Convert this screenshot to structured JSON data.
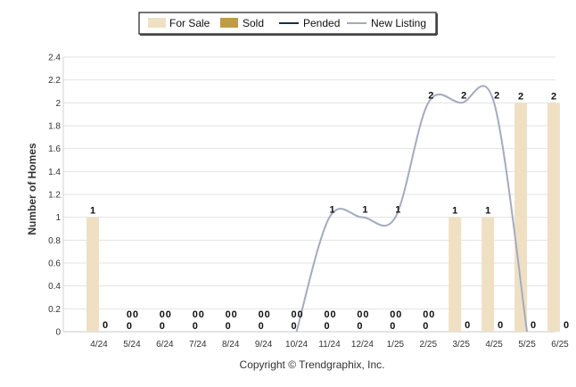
{
  "chart_data": {
    "type": "bar",
    "categories": [
      "4/24",
      "5/24",
      "6/24",
      "7/24",
      "8/24",
      "9/24",
      "10/24",
      "11/24",
      "12/24",
      "1/25",
      "2/25",
      "3/25",
      "4/25",
      "5/25",
      "6/25"
    ],
    "series": [
      {
        "name": "For Sale",
        "kind": "bar",
        "color": "#efe0c4",
        "values": [
          1,
          0,
          0,
          0,
          0,
          0,
          0,
          0,
          0,
          0,
          0,
          1,
          1,
          2,
          2
        ]
      },
      {
        "name": "Sold",
        "kind": "bar",
        "color": "#c09a45",
        "values": [
          0,
          0,
          0,
          0,
          0,
          0,
          0,
          0,
          0,
          0,
          0,
          0,
          0,
          0,
          0
        ]
      },
      {
        "name": "Pended",
        "kind": "line",
        "color": "#1c2b4a",
        "values": [
          0,
          0,
          0,
          0,
          0,
          0,
          0,
          0,
          0,
          0,
          0,
          0,
          0,
          0,
          0
        ]
      },
      {
        "name": "New Listing",
        "kind": "line",
        "color": "#a4abbf",
        "values": [
          null,
          null,
          null,
          null,
          null,
          null,
          0,
          1,
          1,
          1,
          2,
          2,
          2,
          0,
          null
        ]
      }
    ],
    "data_labels": {
      "for_sale": [
        "1",
        "0",
        "0",
        "0",
        "0",
        "0",
        "0",
        "0",
        "0",
        "0",
        "0",
        "1",
        "1",
        "2",
        "2"
      ],
      "sold": [
        "0",
        "0",
        "0",
        "0",
        "0",
        "0",
        "0",
        "0",
        "0",
        "0",
        "0",
        "0",
        "0",
        "0",
        "0"
      ],
      "new_listing": [
        "",
        "",
        "",
        "",
        "",
        "",
        "",
        "1",
        "1",
        "1",
        "2",
        "2",
        "2",
        "",
        ""
      ]
    },
    "ylabel": "Number of Homes",
    "xlabel": "",
    "ylim": [
      0,
      2.4
    ],
    "yticks": [
      "0",
      "0.2",
      "0.4",
      "0.6",
      "0.8",
      "1",
      "1.2",
      "1.4",
      "1.6",
      "1.8",
      "2",
      "2.2",
      "2.4"
    ],
    "grid": true,
    "legend_position": "top-center",
    "copyright": "Copyright © Trendgraphix, Inc."
  }
}
